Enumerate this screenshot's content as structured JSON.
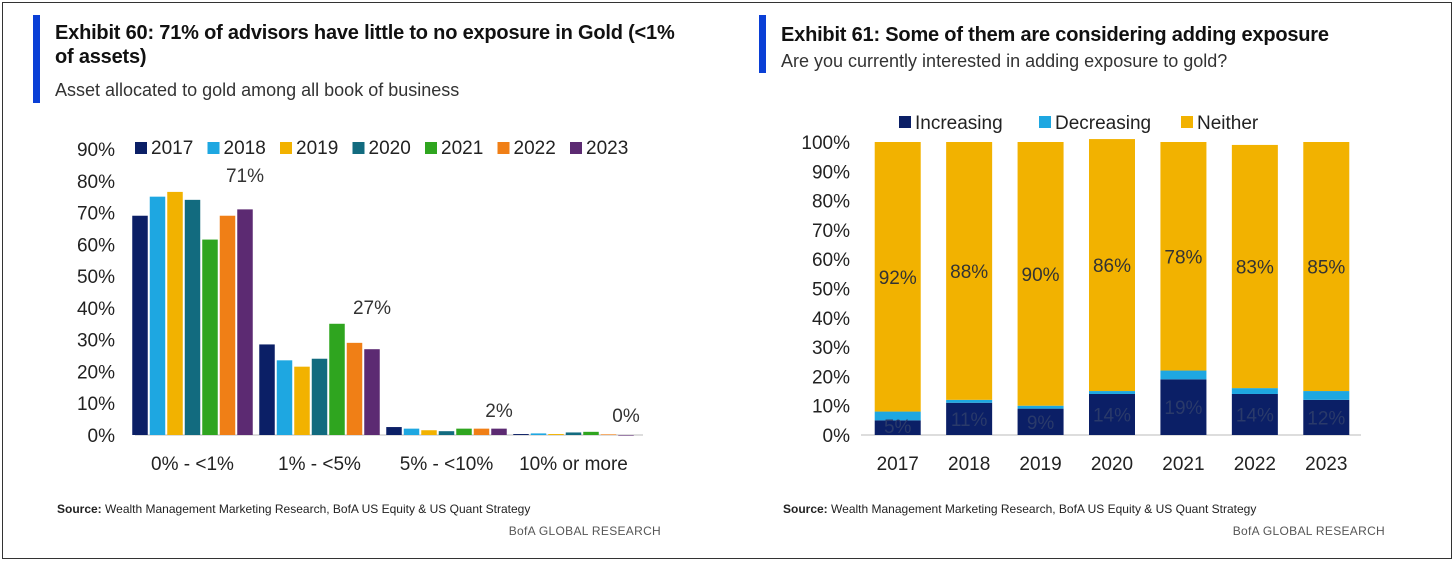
{
  "exhibits": [
    {
      "title": "Exhibit 60: 71% of advisors have little to no exposure in Gold (<1% of assets)",
      "subtitle": "Asset allocated to gold among all book of business",
      "source_label": "Source:",
      "source_text": "Wealth Management Marketing Research,  BofA US Equity & US Quant Strategy",
      "brand": "BofA GLOBAL RESEARCH"
    },
    {
      "title": "Exhibit 61: Some of them are considering adding exposure",
      "subtitle": "Are you currently interested in adding exposure to gold?",
      "source_label": "Source:",
      "source_text": "Wealth Management Marketing Research,  BofA US Equity & US Quant Strategy",
      "brand": "BofA GLOBAL RESEARCH"
    }
  ],
  "chart_data": [
    {
      "type": "bar",
      "categories": [
        "0% - <1%",
        "1% - <5%",
        "5% - <10%",
        "10% or more"
      ],
      "series": [
        {
          "name": "2017",
          "color": "#0b1f66",
          "values": [
            69,
            28.5,
            2.5,
            0.3
          ]
        },
        {
          "name": "2018",
          "color": "#1ea7e1",
          "values": [
            75,
            23.5,
            2,
            0.5
          ]
        },
        {
          "name": "2019",
          "color": "#f2b200",
          "values": [
            76.5,
            21.5,
            1.5,
            0.3
          ]
        },
        {
          "name": "2020",
          "color": "#126b7f",
          "values": [
            74,
            24,
            1.2,
            0.8
          ]
        },
        {
          "name": "2021",
          "color": "#2fa51f",
          "values": [
            61.5,
            35,
            2,
            1
          ]
        },
        {
          "name": "2022",
          "color": "#f07f16",
          "values": [
            69,
            29,
            2,
            0.2
          ]
        },
        {
          "name": "2023",
          "color": "#5c2a72",
          "values": [
            71,
            27,
            2,
            0
          ]
        }
      ],
      "yticks": [
        "90%",
        "80%",
        "70%",
        "60%",
        "50%",
        "40%",
        "30%",
        "20%",
        "10%",
        "0%"
      ],
      "ylim": [
        0,
        90
      ],
      "annotations": [
        "71%",
        "27%",
        "2%",
        "0%"
      ],
      "legend_position": "top"
    },
    {
      "type": "bar",
      "stacked": true,
      "categories": [
        "2017",
        "2018",
        "2019",
        "2020",
        "2021",
        "2022",
        "2023"
      ],
      "series": [
        {
          "name": "Increasing",
          "color": "#0b1f66",
          "values": [
            5,
            11,
            9,
            14,
            19,
            14,
            12
          ]
        },
        {
          "name": "Decreasing",
          "color": "#1ea7e1",
          "values": [
            3,
            1,
            1,
            1,
            3,
            2,
            3
          ]
        },
        {
          "name": "Neither",
          "color": "#f2b200",
          "values": [
            92,
            88,
            90,
            86,
            78,
            83,
            85
          ]
        }
      ],
      "increasing_labels": [
        "5%",
        "11%",
        "9%",
        "14%",
        "19%",
        "14%",
        "12%"
      ],
      "neither_labels": [
        "92%",
        "88%",
        "90%",
        "86%",
        "78%",
        "83%",
        "85%"
      ],
      "yticks": [
        "100%",
        "90%",
        "80%",
        "70%",
        "60%",
        "50%",
        "40%",
        "30%",
        "20%",
        "10%",
        "0%"
      ],
      "ylim": [
        0,
        100
      ],
      "legend_position": "top"
    }
  ]
}
